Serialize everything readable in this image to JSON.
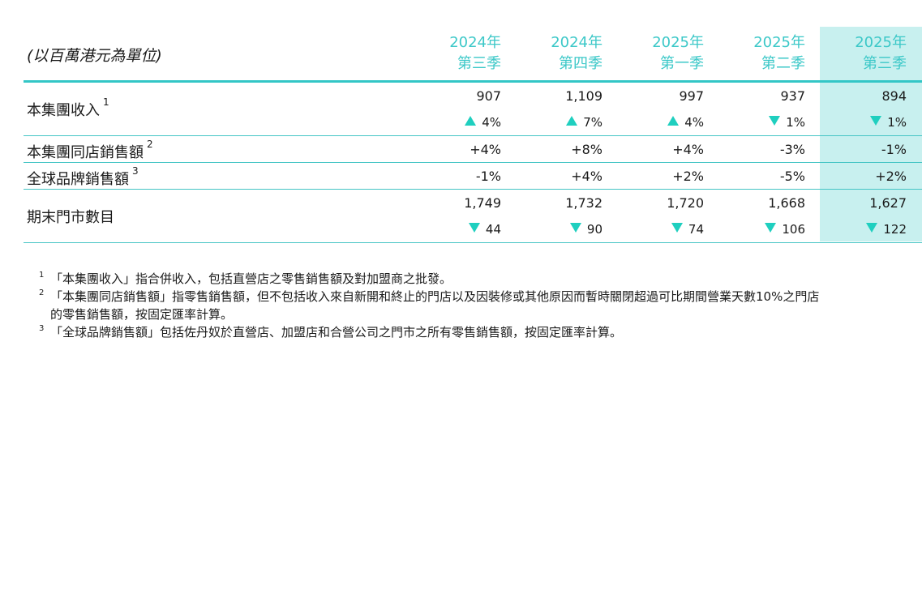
{
  "table": {
    "unit_label": "(以百萬港元為單位)",
    "periods": [
      {
        "year": "2024年",
        "quarter": "第三季"
      },
      {
        "year": "2024年",
        "quarter": "第四季"
      },
      {
        "year": "2025年",
        "quarter": "第一季"
      },
      {
        "year": "2025年",
        "quarter": "第二季"
      },
      {
        "year": "2025年",
        "quarter": "第三季"
      }
    ],
    "rows": [
      {
        "label": "本集團收入",
        "footnote": "1",
        "values": [
          "907",
          "1,109",
          "997",
          "937",
          "894"
        ],
        "changes": [
          {
            "dir": "up",
            "value": "4%"
          },
          {
            "dir": "up",
            "value": "7%"
          },
          {
            "dir": "up",
            "value": "4%"
          },
          {
            "dir": "down",
            "value": "1%"
          },
          {
            "dir": "down",
            "value": "1%"
          }
        ]
      },
      {
        "label": "本集團同店銷售額",
        "footnote": "2",
        "values": [
          "+4%",
          "+8%",
          "+4%",
          "-3%",
          "-1%"
        ]
      },
      {
        "label": "全球品牌銷售額",
        "footnote": "3",
        "values": [
          "-1%",
          "+4%",
          "+2%",
          "-5%",
          "+2%"
        ]
      },
      {
        "label": "期末門市數目",
        "values": [
          "1,749",
          "1,732",
          "1,720",
          "1,668",
          "1,627"
        ],
        "changes": [
          {
            "dir": "down",
            "value": "44"
          },
          {
            "dir": "down",
            "value": "90"
          },
          {
            "dir": "down",
            "value": "74"
          },
          {
            "dir": "down",
            "value": "106"
          },
          {
            "dir": "down",
            "value": "122"
          }
        ]
      }
    ]
  },
  "footnotes": [
    {
      "num": "1",
      "text": "「本集團收入」指合併收入，包括直營店之零售銷售額及對加盟商之批發。"
    },
    {
      "num": "2",
      "text": "「本集團同店銷售額」指零售銷售額，但不包括收入來自新開和終止的門店以及因裝修或其他原因而暫時關閉超過可比期間營業天數10%之門店",
      "continuation": "的零售銷售額，按固定匯率計算。"
    },
    {
      "num": "3",
      "text": "「全球品牌銷售額」包括佐丹奴於直營店、加盟店和合營公司之門市之所有零售銷售額，按固定匯率計算。"
    }
  ],
  "colors": {
    "accent": "#33c6c6",
    "header_text": "#3cc8c8",
    "highlight_bg": "#c8f0ef",
    "arrow": "#1fcfbf"
  }
}
